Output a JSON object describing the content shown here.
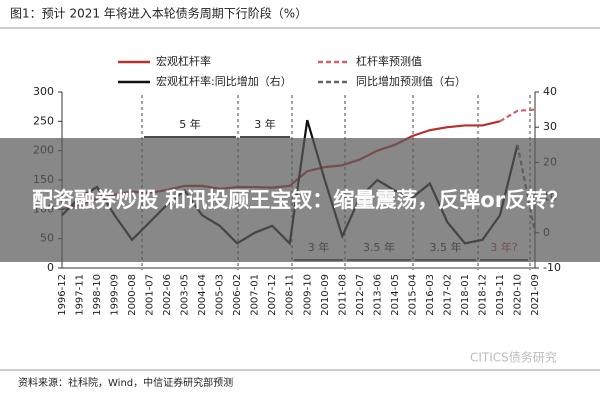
{
  "chart_data": {
    "type": "line",
    "title": "图1：预计 2021 年将进入本轮债务周期下行阶段（%）",
    "categories": [
      "1996-12",
      "1997-11",
      "1998-10",
      "1999-09",
      "2000-08",
      "2001-07",
      "2002-06",
      "2003-05",
      "2004-04",
      "2005-03",
      "2006-02",
      "2007-01",
      "2007-12",
      "2008-11",
      "2009-10",
      "2010-09",
      "2011-08",
      "2012-07",
      "2013-06",
      "2014-05",
      "2015-04",
      "2016-03",
      "2017-02",
      "2018-01",
      "2018-12",
      "2019-11",
      "2020-10",
      "2021-09"
    ],
    "series": [
      {
        "name": "宏观杠杆率",
        "color": "#b8302c",
        "dash": false,
        "values": [
          100,
          108,
          118,
          125,
          130,
          128,
          133,
          140,
          140,
          135,
          138,
          138,
          137,
          140,
          165,
          172,
          175,
          185,
          200,
          210,
          225,
          235,
          240,
          243,
          243,
          250,
          null,
          null
        ]
      },
      {
        "name": "杠杆率预测值",
        "color": "#d0606a",
        "dash": true,
        "values": [
          null,
          null,
          null,
          null,
          null,
          null,
          null,
          null,
          null,
          null,
          null,
          null,
          null,
          null,
          null,
          null,
          null,
          null,
          null,
          null,
          null,
          null,
          null,
          null,
          null,
          250,
          268,
          270
        ]
      },
      {
        "name": "宏观杠杆率:同比增加（右）",
        "color": "#111111",
        "dash": false,
        "axis": "y2",
        "values": [
          5,
          10,
          13,
          5,
          -2,
          3,
          8,
          12,
          5,
          2,
          -3,
          0,
          2,
          -3,
          32,
          15,
          -1,
          10,
          15,
          12,
          10,
          14,
          3,
          -3,
          -2,
          5,
          25,
          null
        ]
      },
      {
        "name": "同比增加预测值（右）",
        "color": "#666666",
        "dash": true,
        "axis": "y2",
        "values": [
          null,
          null,
          null,
          null,
          null,
          null,
          null,
          null,
          null,
          null,
          null,
          null,
          null,
          null,
          null,
          null,
          null,
          null,
          null,
          null,
          null,
          null,
          null,
          null,
          null,
          null,
          25,
          0
        ]
      }
    ],
    "ylim": [
      0,
      300
    ],
    "yticks": [
      0,
      50,
      100,
      150,
      200,
      250,
      300
    ],
    "y2lim": [
      -10,
      40
    ],
    "y2ticks": [
      -10,
      0,
      10,
      20,
      30,
      40
    ],
    "annotations": [
      "5 年",
      "3 年",
      "3 年",
      "3.5 年",
      "3.5 年",
      "3 年?"
    ],
    "source": "资料来源：社科院，Wind，中信证券研究部预测",
    "watermark": "CITICS债务研究"
  },
  "banner": "配资融券炒股 和讯投顾王宝钗：缩量震荡，反弹or反转？"
}
